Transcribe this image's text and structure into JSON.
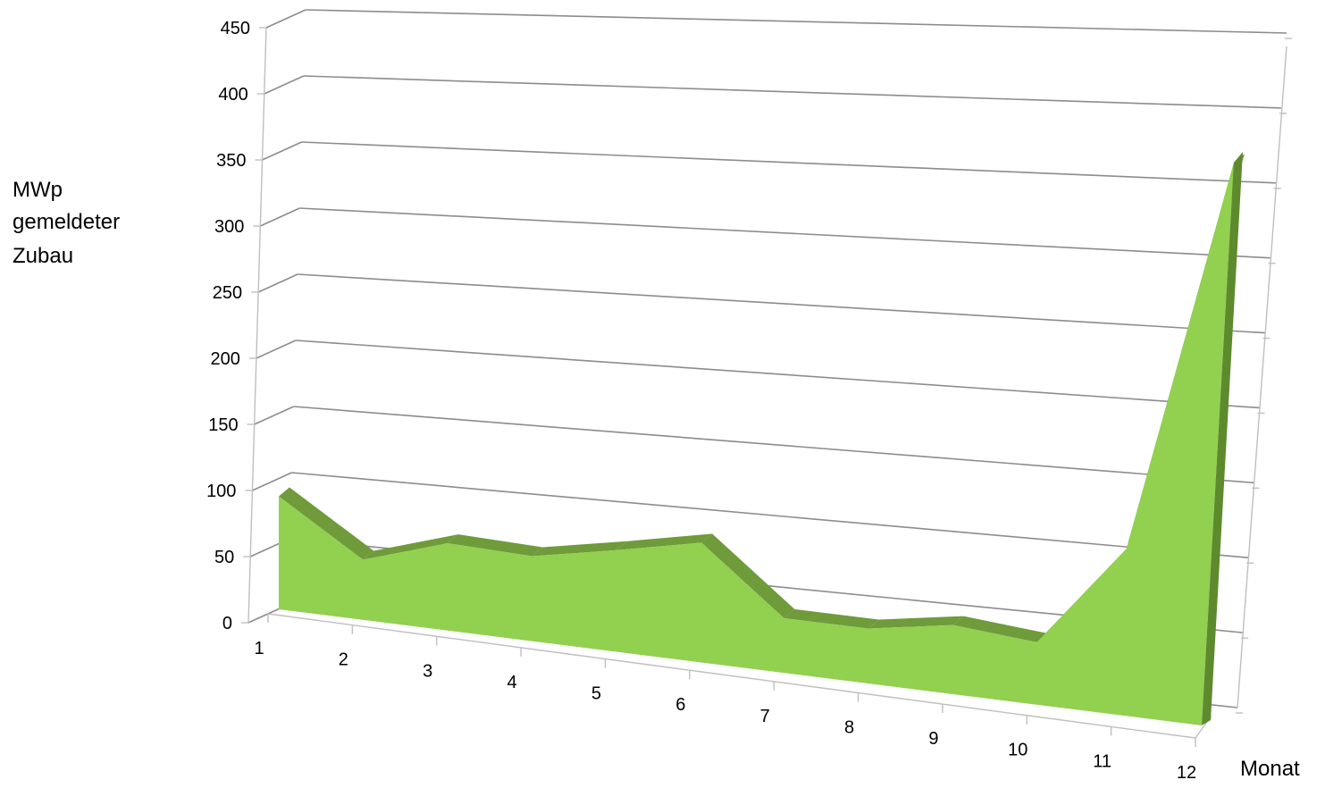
{
  "chart_data": {
    "type": "area",
    "title": "",
    "ylabel_lines": [
      "MWp",
      "gemeldeter",
      "Zubau"
    ],
    "xlabel": "Monat",
    "categories": [
      "1",
      "2",
      "3",
      "4",
      "5",
      "6",
      "7",
      "8",
      "9",
      "10",
      "11",
      "12"
    ],
    "y_ticks": [
      "0",
      "50",
      "100",
      "150",
      "200",
      "250",
      "300",
      "350",
      "400",
      "450"
    ],
    "ylim": [
      0,
      450
    ],
    "grid": true,
    "legend": "none",
    "three_d": true,
    "series": [
      {
        "values": [
          85,
          45,
          65,
          63,
          75,
          88,
          40,
          40,
          50,
          45,
          120,
          405
        ],
        "color": "#92d050",
        "top_color": "#6f9b3a",
        "side_color": "#5e8a2e"
      }
    ],
    "gridline_color": "#8c8c8c",
    "axis_color": "#bfbfbf"
  }
}
